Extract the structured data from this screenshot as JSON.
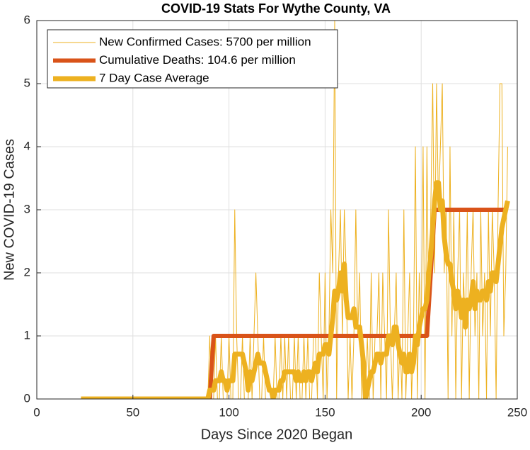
{
  "chart_data": {
    "type": "line",
    "title": "COVID-19 Stats For Wythe County, VA",
    "x_label": "Days Since 2020 Began",
    "y_label": "New COVID-19 Cases",
    "xlim": [
      0,
      250
    ],
    "xticks": [
      0,
      50,
      100,
      150,
      200,
      250
    ],
    "ylim": [
      0,
      6
    ],
    "yticks": [
      0,
      1,
      2,
      3,
      4,
      5,
      6
    ],
    "grid": true,
    "legend_position": "upper-left",
    "x": [
      23,
      24,
      25,
      26,
      27,
      28,
      29,
      30,
      31,
      32,
      33,
      34,
      35,
      36,
      37,
      38,
      39,
      40,
      41,
      42,
      43,
      44,
      45,
      46,
      47,
      48,
      49,
      50,
      51,
      52,
      53,
      54,
      55,
      56,
      57,
      58,
      59,
      60,
      61,
      62,
      63,
      64,
      65,
      66,
      67,
      68,
      69,
      70,
      71,
      72,
      73,
      74,
      75,
      76,
      77,
      78,
      79,
      80,
      81,
      82,
      83,
      84,
      85,
      86,
      87,
      88,
      89,
      90,
      91,
      92,
      93,
      94,
      95,
      96,
      97,
      98,
      99,
      100,
      101,
      102,
      103,
      104,
      105,
      106,
      107,
      108,
      109,
      110,
      111,
      112,
      113,
      114,
      115,
      116,
      117,
      118,
      119,
      120,
      121,
      122,
      123,
      124,
      125,
      126,
      127,
      128,
      129,
      130,
      131,
      132,
      133,
      134,
      135,
      136,
      137,
      138,
      139,
      140,
      141,
      142,
      143,
      144,
      145,
      146,
      147,
      148,
      149,
      150,
      151,
      152,
      153,
      154,
      155,
      156,
      157,
      158,
      159,
      160,
      161,
      162,
      163,
      164,
      165,
      166,
      167,
      168,
      169,
      170,
      171,
      172,
      173,
      174,
      175,
      176,
      177,
      178,
      179,
      180,
      181,
      182,
      183,
      184,
      185,
      186,
      187,
      188,
      189,
      190,
      191,
      192,
      193,
      194,
      195,
      196,
      197,
      198,
      199,
      200,
      201,
      202,
      203,
      204,
      205,
      206,
      207,
      208,
      209,
      210,
      211,
      212,
      213,
      214,
      215,
      216,
      217,
      218,
      219,
      220,
      221,
      222,
      223,
      224,
      225,
      226,
      227,
      228,
      229,
      230,
      231,
      232,
      233,
      234,
      235,
      236,
      237,
      238,
      239,
      240,
      241,
      242,
      243,
      244,
      245
    ],
    "series": [
      {
        "name": "New Confirmed Cases: 5700 per million",
        "color": "#EDB120",
        "width": 1,
        "values": [
          0,
          0,
          0,
          0,
          0,
          0,
          0,
          0,
          0,
          0,
          0,
          0,
          0,
          0,
          0,
          0,
          0,
          0,
          0,
          0,
          0,
          0,
          0,
          0,
          0,
          0,
          0,
          0,
          0,
          0,
          0,
          0,
          0,
          0,
          0,
          0,
          0,
          0,
          0,
          0,
          0,
          0,
          0,
          0,
          0,
          0,
          0,
          0,
          0,
          0,
          0,
          0,
          0,
          0,
          0,
          0,
          0,
          0,
          0,
          0,
          0,
          0,
          0,
          0,
          0,
          0,
          0,
          1,
          0,
          0,
          1,
          0,
          0,
          1,
          0,
          0,
          0,
          1,
          0,
          0,
          3,
          1,
          0,
          0,
          1,
          0,
          0,
          0,
          1,
          0,
          1,
          2,
          1,
          0,
          0,
          1,
          0,
          0,
          0,
          0,
          0,
          1,
          0,
          0,
          1,
          0,
          1,
          0,
          1,
          0,
          0,
          1,
          0,
          1,
          0,
          0,
          1,
          0,
          1,
          0,
          0,
          1,
          1,
          0,
          2,
          1,
          0,
          2,
          0,
          1,
          3,
          2,
          6,
          0,
          2,
          3,
          1,
          3,
          2,
          0,
          1,
          0,
          1,
          3,
          1,
          2,
          0,
          0,
          0,
          1,
          0,
          2,
          0,
          1,
          1,
          2,
          0,
          2,
          1,
          0,
          3,
          1,
          0,
          1,
          2,
          0,
          1,
          0,
          3,
          0,
          1,
          2,
          0,
          1,
          4,
          0,
          2,
          1,
          4,
          0,
          4,
          1,
          3,
          5,
          2,
          5,
          3,
          4,
          5,
          2,
          3,
          0,
          4,
          1,
          3,
          0,
          2,
          3,
          0,
          2,
          1,
          3,
          0,
          2,
          3,
          1,
          2,
          0,
          3,
          1,
          2,
          0,
          3,
          1,
          3,
          2,
          0,
          3,
          5,
          5,
          1,
          2,
          4
        ]
      },
      {
        "name": "Cumulative Deaths: 104.6 per million",
        "color": "#D95319",
        "width": 6,
        "x": [
          23,
          90,
          92,
          203,
          207,
          244
        ],
        "values": [
          0,
          0,
          1,
          1,
          3,
          3
        ]
      },
      {
        "name": "7 Day Case Average",
        "color": "#EDB120",
        "width": 7,
        "values": [
          0,
          0,
          0,
          0,
          0,
          0,
          0,
          0,
          0,
          0,
          0,
          0,
          0,
          0,
          0,
          0,
          0,
          0,
          0,
          0,
          0,
          0,
          0,
          0,
          0,
          0,
          0,
          0,
          0,
          0,
          0,
          0,
          0,
          0,
          0,
          0,
          0,
          0,
          0,
          0,
          0,
          0,
          0,
          0,
          0,
          0,
          0,
          0,
          0,
          0,
          0,
          0,
          0,
          0,
          0,
          0,
          0,
          0,
          0,
          0,
          0,
          0,
          0,
          0,
          0,
          0,
          0,
          0.14,
          0.14,
          0.14,
          0.29,
          0.29,
          0.29,
          0.43,
          0.29,
          0.29,
          0.14,
          0.29,
          0.29,
          0.29,
          0.71,
          0.71,
          0.71,
          0.71,
          0.71,
          0.57,
          0.43,
          0.14,
          0.43,
          0.29,
          0.43,
          0.57,
          0.71,
          0.57,
          0.57,
          0.57,
          0.43,
          0.29,
          0.14,
          0.14,
          0,
          0.14,
          0.14,
          0.14,
          0.29,
          0.29,
          0.43,
          0.43,
          0.43,
          0.43,
          0.43,
          0.43,
          0.29,
          0.43,
          0.29,
          0.29,
          0.43,
          0.29,
          0.43,
          0.43,
          0.29,
          0.43,
          0.57,
          0.43,
          0.71,
          0.71,
          0.71,
          0.86,
          0.86,
          0.71,
          1,
          1.29,
          1.71,
          1.57,
          1.71,
          2,
          1.71,
          2.14,
          1.57,
          1.29,
          1.29,
          1.29,
          1.43,
          1.14,
          1.14,
          1.14,
          0.86,
          0.57,
          0,
          0.14,
          0.29,
          0.43,
          0.43,
          0.57,
          0.71,
          0.71,
          0.57,
          0.71,
          0.71,
          0.71,
          1,
          1,
          0.86,
          1.14,
          1.14,
          0.86,
          0.71,
          0.57,
          0.71,
          0.43,
          0.43,
          0.71,
          0.43,
          0.57,
          1,
          0.86,
          1.14,
          1.29,
          1.43,
          1.43,
          1.57,
          2,
          2.29,
          2.71,
          3.14,
          3.43,
          3.43,
          3,
          3.14,
          2.57,
          2.29,
          2.14,
          2.14,
          1.86,
          1.71,
          1.43,
          1.71,
          1.57,
          1.29,
          1.57,
          1.14,
          1.57,
          1.43,
          1.57,
          1.86,
          1.43,
          1.71,
          1.57,
          1.57,
          1.71,
          1.71,
          1.57,
          1.86,
          1.71,
          2,
          2,
          1.86,
          2.14,
          2.43,
          2.71,
          2.86,
          3,
          3.14
        ]
      }
    ]
  }
}
